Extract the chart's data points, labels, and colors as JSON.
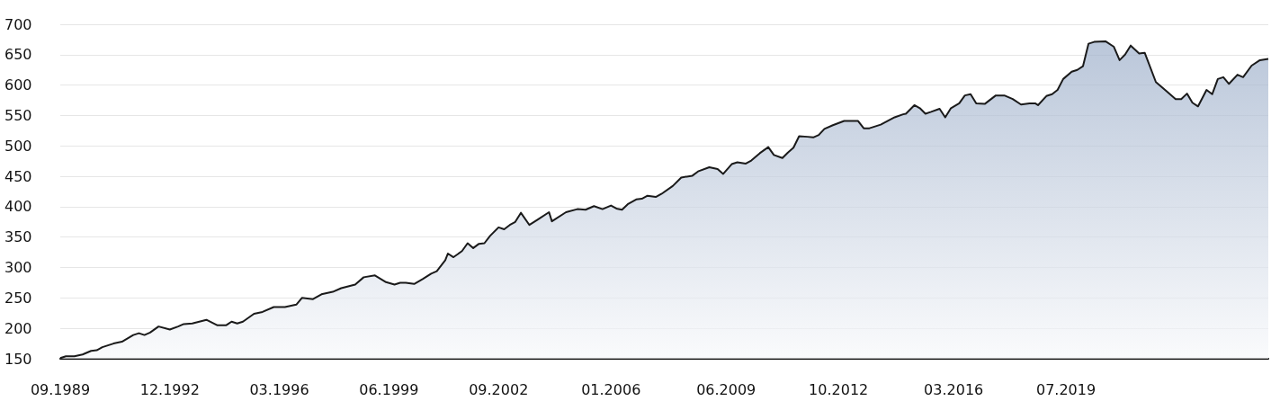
{
  "chart_data": {
    "type": "area",
    "xlim": [
      "1989-09",
      "2025-07"
    ],
    "xticks": [
      {
        "value": "1989-09",
        "label": "09.1989"
      },
      {
        "value": "1992-12",
        "label": "12.1992"
      },
      {
        "value": "1996-03",
        "label": "03.1996"
      },
      {
        "value": "1999-06",
        "label": "06.1999"
      },
      {
        "value": "2002-09",
        "label": "09.2002"
      },
      {
        "value": "2006-01",
        "label": "01.2006"
      },
      {
        "value": "2009-06",
        "label": "06.2009"
      },
      {
        "value": "2012-10",
        "label": "10.2012"
      },
      {
        "value": "2016-03",
        "label": "03.2016"
      },
      {
        "value": "2019-07",
        "label": "07.2019"
      }
    ],
    "ylim": [
      150,
      700
    ],
    "yticks": [
      150,
      200,
      250,
      300,
      350,
      400,
      450,
      500,
      550,
      600,
      650,
      700
    ],
    "grid": "y",
    "marker": "none",
    "x": [
      "1989-09",
      "1989-11",
      "1990-02",
      "1990-05",
      "1990-08",
      "1990-10",
      "1990-12",
      "1991-04",
      "1991-07",
      "1991-11",
      "1992-01",
      "1992-03",
      "1992-05",
      "1992-08",
      "1992-12",
      "1993-03",
      "1993-05",
      "1993-08",
      "1994-01",
      "1994-05",
      "1994-08",
      "1994-10",
      "1994-12",
      "1995-02",
      "1995-06",
      "1995-09",
      "1996-01",
      "1996-05",
      "1996-09",
      "1996-11",
      "1997-03",
      "1997-06",
      "1997-10",
      "1998-01",
      "1998-06",
      "1998-09",
      "1999-01",
      "1999-05",
      "1999-08",
      "1999-10",
      "1999-12",
      "2000-03",
      "2000-06",
      "2000-09",
      "2000-11",
      "2001-02",
      "2001-03",
      "2001-05",
      "2001-08",
      "2001-10",
      "2001-12",
      "2002-02",
      "2002-04",
      "2002-06",
      "2002-09",
      "2002-11",
      "2003-01",
      "2003-03",
      "2003-05",
      "2003-08",
      "2003-11",
      "2004-03",
      "2004-04",
      "2004-09",
      "2005-01",
      "2005-04",
      "2005-07",
      "2005-10",
      "2006-01",
      "2006-03",
      "2006-05",
      "2006-07",
      "2006-10",
      "2006-12",
      "2007-02",
      "2007-05",
      "2007-07",
      "2007-11",
      "2008-02",
      "2008-06",
      "2008-08",
      "2008-12",
      "2009-03",
      "2009-05",
      "2009-08",
      "2009-10",
      "2010-01",
      "2010-03",
      "2010-06",
      "2010-09",
      "2010-11",
      "2011-02",
      "2011-04",
      "2011-06",
      "2011-08",
      "2011-11",
      "2012-01",
      "2012-03",
      "2012-05",
      "2012-08",
      "2012-12",
      "2013-02",
      "2013-05",
      "2013-07",
      "2013-09",
      "2014-01",
      "2014-06",
      "2014-09",
      "2014-10",
      "2015-01",
      "2015-03",
      "2015-05",
      "2015-07",
      "2015-10",
      "2015-12",
      "2016-02",
      "2016-05",
      "2016-07",
      "2016-09",
      "2016-11",
      "2017-02",
      "2017-06",
      "2017-09",
      "2017-12",
      "2018-03",
      "2018-06",
      "2018-08",
      "2018-09",
      "2018-12",
      "2019-02",
      "2019-04",
      "2019-06",
      "2019-09",
      "2019-11",
      "2020-01",
      "2020-03",
      "2020-05",
      "2020-09",
      "2020-12",
      "2021-02",
      "2021-04",
      "2021-06",
      "2021-09",
      "2021-11",
      "2022-03",
      "2022-07",
      "2022-10",
      "2022-12",
      "2023-02",
      "2023-04",
      "2023-06",
      "2023-09",
      "2023-11",
      "2024-01",
      "2024-03",
      "2024-05",
      "2024-08",
      "2024-10",
      "2025-01",
      "2025-04",
      "2025-07"
    ],
    "series": [
      {
        "color": "#1a1a1a",
        "values": [
          151,
          154,
          154,
          157,
          163,
          164,
          169,
          175,
          178,
          189,
          192,
          189,
          193,
          203,
          198,
          203,
          207,
          208,
          214,
          205,
          205,
          211,
          208,
          211,
          224,
          227,
          235,
          235,
          239,
          250,
          248,
          256,
          260,
          266,
          272,
          284,
          287,
          276,
          272,
          275,
          275,
          273,
          281,
          290,
          294,
          312,
          323,
          317,
          327,
          340,
          332,
          339,
          340,
          352,
          366,
          363,
          370,
          375,
          390,
          370,
          379,
          391,
          376,
          391,
          396,
          395,
          401,
          396,
          402,
          397,
          395,
          404,
          412,
          413,
          418,
          416,
          421,
          434,
          448,
          451,
          458,
          465,
          462,
          454,
          470,
          473,
          471,
          476,
          488,
          498,
          485,
          480,
          489,
          497,
          516,
          515,
          514,
          518,
          528,
          534,
          541,
          541,
          541,
          529,
          529,
          535,
          547,
          552,
          553,
          567,
          562,
          553,
          556,
          561,
          547,
          562,
          570,
          583,
          585,
          570,
          569,
          583,
          583,
          577,
          568,
          570,
          570,
          567,
          582,
          585,
          592,
          610,
          622,
          625,
          631,
          668,
          671,
          672,
          663,
          641,
          650,
          665,
          652,
          653,
          605,
          589,
          577,
          577,
          586,
          571,
          565,
          592,
          585,
          610,
          613,
          602,
          617,
          613,
          632,
          641,
          643
        ]
      }
    ]
  }
}
